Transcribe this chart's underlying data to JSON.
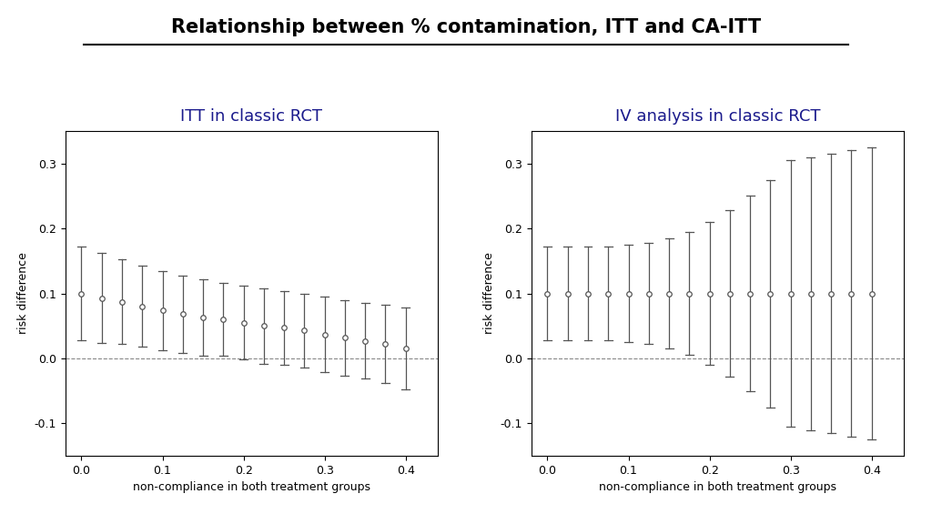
{
  "title": "Relationship between % contamination, ITT and CA-ITT",
  "left_title": "ITT in classic RCT",
  "right_title": "IV analysis in classic RCT",
  "xlabel": "non-compliance in both treatment groups",
  "ylabel": "risk difference",
  "title_color": "#000000",
  "subplot_title_color": "#1a1a8c",
  "background_color": "#ffffff",
  "ylim": [
    -0.15,
    0.35
  ],
  "xlim": [
    -0.02,
    0.44
  ],
  "yticks": [
    -0.1,
    0.0,
    0.1,
    0.2,
    0.3
  ],
  "xticks": [
    0.0,
    0.1,
    0.2,
    0.3,
    0.4
  ],
  "left_x": [
    0.0,
    0.025,
    0.05,
    0.075,
    0.1,
    0.125,
    0.15,
    0.175,
    0.2,
    0.225,
    0.25,
    0.275,
    0.3,
    0.325,
    0.35,
    0.375,
    0.4
  ],
  "left_y": [
    0.1,
    0.093,
    0.087,
    0.08,
    0.074,
    0.068,
    0.063,
    0.06,
    0.055,
    0.05,
    0.047,
    0.043,
    0.037,
    0.032,
    0.027,
    0.022,
    0.015
  ],
  "left_upper": [
    0.172,
    0.162,
    0.152,
    0.143,
    0.135,
    0.128,
    0.122,
    0.116,
    0.112,
    0.108,
    0.104,
    0.1,
    0.095,
    0.09,
    0.085,
    0.082,
    0.078
  ],
  "left_lower": [
    0.028,
    0.024,
    0.022,
    0.018,
    0.013,
    0.008,
    0.004,
    0.004,
    -0.002,
    -0.008,
    -0.01,
    -0.014,
    -0.021,
    -0.026,
    -0.031,
    -0.038,
    -0.048
  ],
  "right_x": [
    0.0,
    0.025,
    0.05,
    0.075,
    0.1,
    0.125,
    0.15,
    0.175,
    0.2,
    0.225,
    0.25,
    0.275,
    0.3,
    0.325,
    0.35,
    0.375,
    0.4
  ],
  "right_y": [
    0.1,
    0.1,
    0.1,
    0.1,
    0.1,
    0.1,
    0.1,
    0.1,
    0.1,
    0.1,
    0.1,
    0.1,
    0.1,
    0.1,
    0.1,
    0.1,
    0.1
  ],
  "right_upper": [
    0.172,
    0.172,
    0.172,
    0.172,
    0.175,
    0.178,
    0.185,
    0.195,
    0.21,
    0.228,
    0.25,
    0.275,
    0.305,
    0.31,
    0.315,
    0.32,
    0.325
  ],
  "right_lower": [
    0.028,
    0.028,
    0.028,
    0.028,
    0.025,
    0.022,
    0.015,
    0.005,
    -0.01,
    -0.028,
    -0.05,
    -0.075,
    -0.105,
    -0.11,
    -0.115,
    -0.12,
    -0.125
  ]
}
